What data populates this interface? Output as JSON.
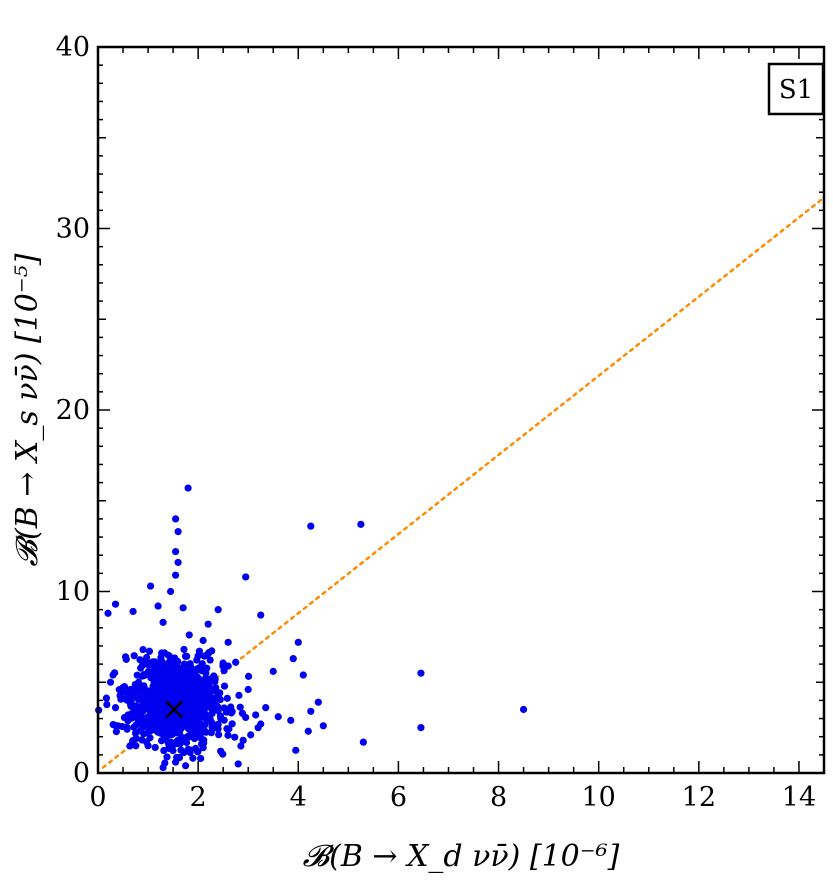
{
  "chart_data": {
    "type": "scatter",
    "title": "",
    "panel_tag": "S1",
    "xlabel": "𝓑(B → X_d νν̄)  [10⁻⁶]",
    "ylabel": "𝓑(B → X_s νν̄)  [10⁻⁵]",
    "xlim": [
      0,
      14.5
    ],
    "ylim": [
      0,
      40
    ],
    "x_ticks": [
      "0",
      "2",
      "4",
      "6",
      "8",
      "10",
      "12",
      "14"
    ],
    "y_ticks": [
      "0",
      "10",
      "20",
      "30",
      "40"
    ],
    "colors": {
      "points": "#0000ee",
      "reference_line": "#ff8c00",
      "central_marker": "#000000"
    },
    "central_value": {
      "x": 1.52,
      "y": 3.5,
      "marker": "x-mark"
    },
    "reference_line": {
      "style": "dotted",
      "points": [
        [
          0.1,
          0.3
        ],
        [
          14.5,
          31.7
        ]
      ]
    },
    "outliers": [
      [
        1.8,
        15.7
      ],
      [
        1.55,
        14.0
      ],
      [
        1.6,
        13.3
      ],
      [
        1.55,
        12.2
      ],
      [
        1.6,
        11.6
      ],
      [
        1.55,
        10.9
      ],
      [
        2.95,
        10.8
      ],
      [
        1.05,
        10.3
      ],
      [
        1.45,
        10.0
      ],
      [
        4.25,
        13.6
      ],
      [
        5.25,
        13.7
      ],
      [
        0.35,
        9.3
      ],
      [
        0.2,
        8.8
      ],
      [
        2.4,
        9.0
      ],
      [
        3.25,
        8.7
      ],
      [
        4.0,
        7.2
      ],
      [
        2.1,
        7.3
      ],
      [
        6.45,
        5.5
      ],
      [
        8.5,
        3.5
      ],
      [
        6.45,
        2.5
      ],
      [
        5.3,
        1.7
      ],
      [
        3.95,
        1.25
      ],
      [
        4.4,
        3.9
      ],
      [
        4.5,
        2.6
      ],
      [
        4.2,
        2.3
      ],
      [
        4.25,
        3.4
      ],
      [
        3.85,
        2.9
      ],
      [
        3.6,
        3.1
      ],
      [
        3.9,
        6.3
      ],
      [
        4.1,
        5.4
      ],
      [
        2.8,
        0.5
      ],
      [
        1.3,
        0.3
      ],
      [
        1.75,
        0.4
      ],
      [
        0.35,
        3.6
      ],
      [
        0.4,
        2.6
      ],
      [
        0.55,
        6.4
      ],
      [
        0.3,
        5.4
      ],
      [
        0.7,
        8.9
      ],
      [
        1.2,
        9.2
      ],
      [
        1.7,
        9.1
      ],
      [
        2.6,
        7.2
      ],
      [
        3.5,
        5.6
      ],
      [
        3.0,
        4.6
      ],
      [
        3.35,
        3.6
      ],
      [
        3.25,
        2.7
      ],
      [
        2.9,
        1.8
      ],
      [
        2.45,
        1.2
      ],
      [
        2.05,
        0.8
      ],
      [
        1.55,
        0.6
      ],
      [
        1.0,
        1.5
      ],
      [
        0.75,
        2.2
      ],
      [
        0.6,
        3.2
      ],
      [
        0.9,
        6.8
      ],
      [
        3.15,
        3.2
      ],
      [
        3.05,
        2.1
      ],
      [
        0.25,
        5.0
      ],
      [
        0.55,
        4.1
      ],
      [
        2.75,
        6.1
      ],
      [
        2.2,
        8.2
      ],
      [
        1.3,
        8.3
      ]
    ],
    "cluster": {
      "center": [
        1.55,
        3.9
      ],
      "spread": [
        0.47,
        1.15
      ],
      "count": 1000,
      "seed": 20240521
    }
  }
}
